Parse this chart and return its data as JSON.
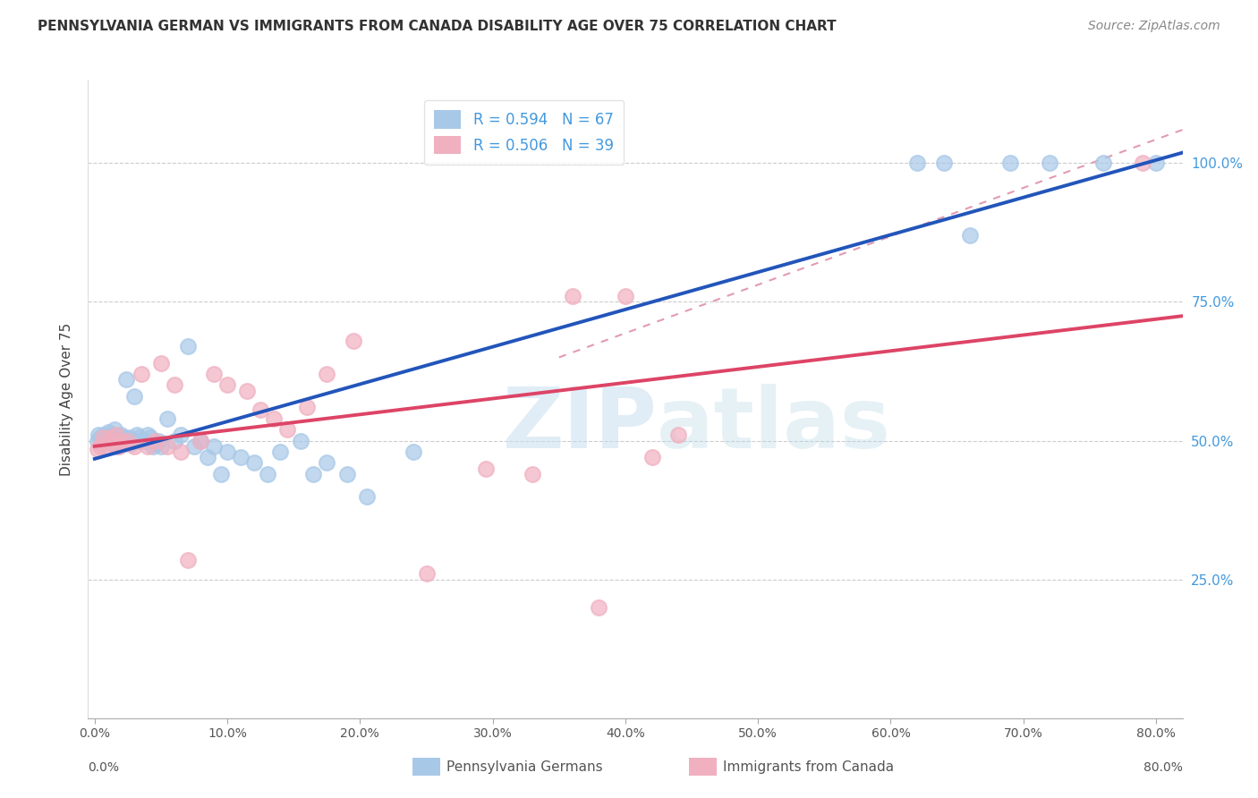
{
  "title": "PENNSYLVANIA GERMAN VS IMMIGRANTS FROM CANADA DISABILITY AGE OVER 75 CORRELATION CHART",
  "source": "Source: ZipAtlas.com",
  "ylabel": "Disability Age Over 75",
  "blue_color": "#a8c8e8",
  "pink_color": "#f0b0c0",
  "blue_line_color": "#2255bb",
  "pink_line_color": "#dd4466",
  "dashed_line_color": "#e090a8",
  "watermark_zip": "ZIP",
  "watermark_atlas": "atlas",
  "legend_label_blue": "R = 0.594   N = 67",
  "legend_label_pink": "R = 0.506   N = 39",
  "legend_text_color": "#4499dd",
  "right_axis_color": "#4499dd",
  "bottom_label_blue": "Pennsylvania Germans",
  "bottom_label_pink": "Immigrants from Canada",
  "blue_scatter_x": [
    0.002,
    0.003,
    0.004,
    0.005,
    0.006,
    0.007,
    0.008,
    0.009,
    0.01,
    0.01,
    0.011,
    0.012,
    0.013,
    0.014,
    0.015,
    0.015,
    0.016,
    0.017,
    0.018,
    0.019,
    0.02,
    0.021,
    0.022,
    0.023,
    0.024,
    0.025,
    0.026,
    0.027,
    0.028,
    0.03,
    0.032,
    0.033,
    0.034,
    0.038,
    0.04,
    0.042,
    0.044,
    0.046,
    0.048,
    0.05,
    0.055,
    0.06,
    0.065,
    0.07,
    0.075,
    0.08,
    0.085,
    0.09,
    0.095,
    0.1,
    0.11,
    0.12,
    0.13,
    0.14,
    0.155,
    0.165,
    0.175,
    0.19,
    0.205,
    0.24,
    0.62,
    0.64,
    0.66,
    0.69,
    0.72,
    0.76,
    0.8
  ],
  "blue_scatter_y": [
    0.5,
    0.51,
    0.505,
    0.495,
    0.5,
    0.51,
    0.5,
    0.505,
    0.5,
    0.515,
    0.5,
    0.505,
    0.495,
    0.51,
    0.52,
    0.5,
    0.5,
    0.49,
    0.495,
    0.505,
    0.51,
    0.5,
    0.505,
    0.495,
    0.61,
    0.5,
    0.505,
    0.495,
    0.5,
    0.58,
    0.51,
    0.505,
    0.5,
    0.5,
    0.51,
    0.505,
    0.49,
    0.495,
    0.5,
    0.49,
    0.54,
    0.5,
    0.51,
    0.67,
    0.49,
    0.5,
    0.47,
    0.49,
    0.44,
    0.48,
    0.47,
    0.46,
    0.44,
    0.48,
    0.5,
    0.44,
    0.46,
    0.44,
    0.4,
    0.48,
    1.0,
    1.0,
    0.87,
    1.0,
    1.0,
    1.0,
    1.0
  ],
  "pink_scatter_x": [
    0.002,
    0.004,
    0.006,
    0.008,
    0.01,
    0.012,
    0.014,
    0.016,
    0.018,
    0.02,
    0.025,
    0.03,
    0.035,
    0.04,
    0.045,
    0.05,
    0.055,
    0.06,
    0.065,
    0.07,
    0.08,
    0.09,
    0.1,
    0.115,
    0.125,
    0.135,
    0.145,
    0.16,
    0.175,
    0.195,
    0.25,
    0.295,
    0.33,
    0.36,
    0.38,
    0.4,
    0.42,
    0.44,
    0.79
  ],
  "pink_scatter_y": [
    0.485,
    0.49,
    0.505,
    0.49,
    0.5,
    0.505,
    0.495,
    0.51,
    0.49,
    0.5,
    0.5,
    0.49,
    0.62,
    0.49,
    0.5,
    0.64,
    0.49,
    0.6,
    0.48,
    0.285,
    0.5,
    0.62,
    0.6,
    0.59,
    0.555,
    0.54,
    0.52,
    0.56,
    0.62,
    0.68,
    0.26,
    0.45,
    0.44,
    0.76,
    0.2,
    0.76,
    0.47,
    0.51,
    1.0
  ],
  "xtick_positions": [
    0.0,
    0.1,
    0.2,
    0.3,
    0.4,
    0.5,
    0.6,
    0.7,
    0.8
  ],
  "ytick_grid_vals": [
    0.25,
    0.5,
    0.75,
    1.0
  ],
  "xmin": -0.005,
  "xmax": 0.82,
  "ymin": 0.0,
  "ymax": 1.15
}
